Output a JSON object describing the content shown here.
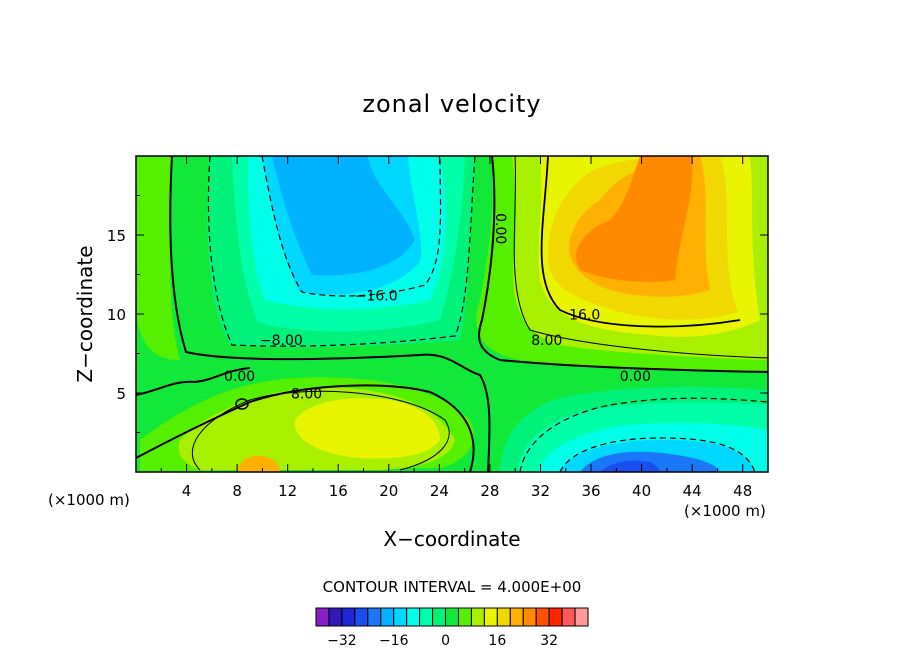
{
  "chart_data": {
    "type": "heatmap",
    "title": "zonal velocity",
    "xlabel": "X−coordinate",
    "ylabel": "Z−coordinate",
    "x_unit": "(×1000 m)",
    "x_unit_right": "(×1000 m)",
    "xlim": [
      0,
      50
    ],
    "ylim": [
      0,
      20
    ],
    "x_ticks": [
      4,
      8,
      12,
      16,
      20,
      24,
      28,
      32,
      36,
      40,
      44,
      48
    ],
    "y_ticks": [
      5,
      10,
      15
    ],
    "contour_interval_text": "CONTOUR INTERVAL = 4.000E+00",
    "contour_labels": [
      {
        "text": "−16.0",
        "x": 19,
        "z": 11.1
      },
      {
        "text": "−8.00",
        "x": 11.5,
        "z": 8.3
      },
      {
        "text": "0.00",
        "x": 8.2,
        "z": 6.0
      },
      {
        "text": "8.00",
        "x": 13.5,
        "z": 4.9
      },
      {
        "text": "0.00",
        "x": 28.8,
        "z": 15.4
      },
      {
        "text": "16.0",
        "x": 35.5,
        "z": 9.9
      },
      {
        "text": "8.00",
        "x": 32.5,
        "z": 8.3
      },
      {
        "text": "0.00",
        "x": 39.5,
        "z": 6.0
      }
    ],
    "colorbar": {
      "levels": [
        -36,
        -32,
        -28,
        -24,
        -20,
        -16,
        -12,
        -8,
        -4,
        0,
        4,
        8,
        12,
        16,
        20,
        24,
        28,
        32,
        36
      ],
      "tick_labels": [
        "−32",
        "−16",
        "0",
        "16",
        "32"
      ],
      "tick_values": [
        -32,
        -16,
        0,
        16,
        32
      ],
      "colors": [
        "#8a1fc9",
        "#3318b8",
        "#1c27d6",
        "#1a4ef0",
        "#1a78f8",
        "#00b2ff",
        "#00d8ff",
        "#00ffe8",
        "#00ffa8",
        "#00f27a",
        "#12e83a",
        "#55f000",
        "#a8f000",
        "#e8f400",
        "#f0d800",
        "#ffb000",
        "#ff8a00",
        "#ff5200",
        "#ff2600",
        "#ff5a5a",
        "#ff9a9a"
      ]
    }
  }
}
